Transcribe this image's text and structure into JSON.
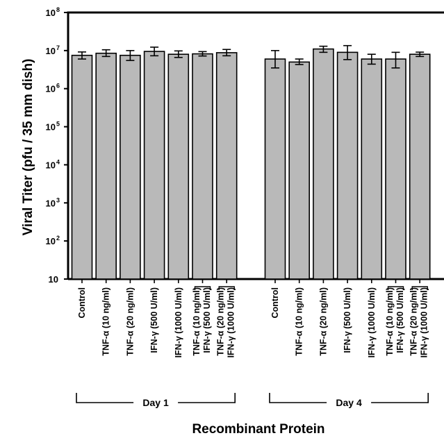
{
  "chart_data": {
    "type": "bar",
    "title": "",
    "ylabel": "Viral Titer (pfu / 35 mm dish)",
    "xlabel": "Recombinant Protein",
    "yscale": "log",
    "ylim": [
      10,
      100000000
    ],
    "yticks": [
      {
        "value": 10,
        "base": "10",
        "exp": ""
      },
      {
        "value": 100,
        "base": "10",
        "exp": "2"
      },
      {
        "value": 1000,
        "base": "10",
        "exp": "3"
      },
      {
        "value": 10000,
        "base": "10",
        "exp": "4"
      },
      {
        "value": 100000,
        "base": "10",
        "exp": "5"
      },
      {
        "value": 1000000,
        "base": "10",
        "exp": "6"
      },
      {
        "value": 10000000,
        "base": "10",
        "exp": "7"
      },
      {
        "value": 100000000,
        "base": "10",
        "exp": "8"
      }
    ],
    "bar_color": "#b9b9b9",
    "groups": [
      {
        "label": "Day 1",
        "bars": [
          {
            "label": [
              "Control"
            ],
            "value": 7500000,
            "err_low": 6000000,
            "err_high": 9200000
          },
          {
            "label": [
              "TNF-α (10 ng/ml)"
            ],
            "value": 8500000,
            "err_low": 7000000,
            "err_high": 10500000
          },
          {
            "label": [
              "TNF-α (20 ng/ml)"
            ],
            "value": 7500000,
            "err_low": 5500000,
            "err_high": 10000000
          },
          {
            "label": [
              "IFN-γ (500 U/ml)"
            ],
            "value": 9500000,
            "err_low": 7300000,
            "err_high": 12300000
          },
          {
            "label": [
              "IFN-γ (1000 U/ml)"
            ],
            "value": 8000000,
            "err_low": 6600000,
            "err_high": 9800000
          },
          {
            "label": [
              "TNF-α (10 ng/ml)",
              "IFN-γ (500 U/ml)"
            ],
            "value": 8200000,
            "err_low": 7200000,
            "err_high": 9400000
          },
          {
            "label": [
              "TNF-α (20 ng/ml)",
              "IFN-γ (1000 U/ml)"
            ],
            "value": 8800000,
            "err_low": 7300000,
            "err_high": 10700000
          }
        ]
      },
      {
        "label": "Day 4",
        "bars": [
          {
            "label": [
              "Control"
            ],
            "value": 6000000,
            "err_low": 3500000,
            "err_high": 10000000
          },
          {
            "label": [
              "TNF-α (10 ng/ml)"
            ],
            "value": 5000000,
            "err_low": 4300000,
            "err_high": 6000000
          },
          {
            "label": [
              "TNF-α (20 ng/ml)"
            ],
            "value": 11000000,
            "err_low": 9000000,
            "err_high": 13000000
          },
          {
            "label": [
              "IFN-γ (500 U/ml)"
            ],
            "value": 9000000,
            "err_low": 5800000,
            "err_high": 13500000
          },
          {
            "label": [
              "IFN-γ (1000 U/ml)"
            ],
            "value": 6000000,
            "err_low": 4400000,
            "err_high": 8000000
          },
          {
            "label": [
              "TNF-α (10 ng/ml)",
              "IFN-γ (500 U/ml)"
            ],
            "value": 6000000,
            "err_low": 3500000,
            "err_high": 9000000
          },
          {
            "label": [
              "TNF-α (20 ng/ml)",
              "IFN-γ (1000 U/ml)"
            ],
            "value": 8000000,
            "err_low": 7000000,
            "err_high": 9100000
          }
        ]
      }
    ]
  }
}
